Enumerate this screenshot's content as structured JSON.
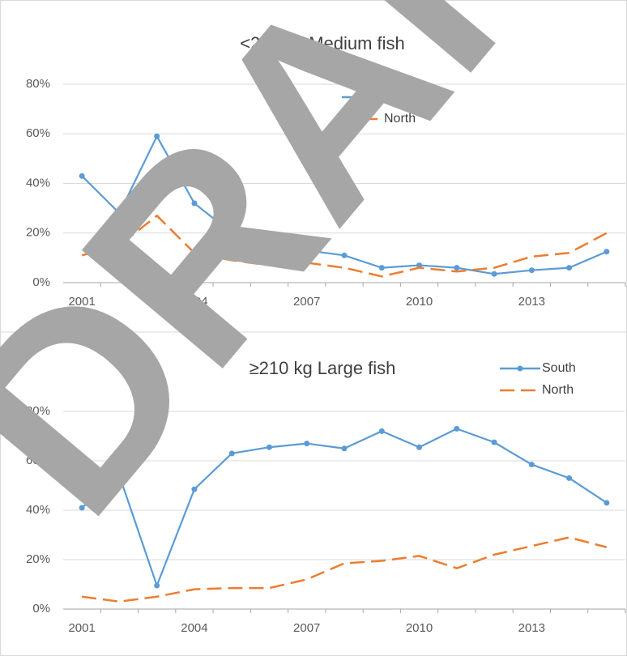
{
  "watermark": "DRAFT",
  "chart_data": [
    {
      "type": "line",
      "title": "<210 kg Medium fish",
      "categories": [
        2001,
        null,
        null,
        2004,
        null,
        null,
        2007,
        null,
        null,
        2010,
        null,
        null,
        2013,
        null,
        null
      ],
      "series": [
        {
          "name": "South",
          "color": "#5b9bd5",
          "values": [
            43,
            28,
            59,
            32,
            20,
            19,
            13,
            11,
            6,
            7,
            6,
            3.5,
            5,
            6,
            12.5
          ]
        },
        {
          "name": "North",
          "color": "#ed7d31",
          "values": [
            11,
            15,
            27,
            12,
            9,
            7,
            8,
            6,
            2.5,
            6,
            4.5,
            6,
            10.5,
            12,
            20
          ]
        }
      ],
      "ylim": [
        0,
        80
      ],
      "yticks": [
        {
          "value": 0,
          "label": "0%"
        },
        {
          "value": 20,
          "label": "20%"
        },
        {
          "value": 40,
          "label": "40%"
        },
        {
          "value": 60,
          "label": "60%"
        },
        {
          "value": 80,
          "label": "80%"
        }
      ],
      "grid": true,
      "legend": "upper right"
    },
    {
      "type": "line",
      "title": "≥210 kg Large fish",
      "categories": [
        2001,
        null,
        null,
        2004,
        null,
        null,
        2007,
        null,
        null,
        2010,
        null,
        null,
        2013,
        null,
        null
      ],
      "series": [
        {
          "name": "South",
          "color": "#5b9bd5",
          "values": [
            41,
            54,
            9.5,
            48.5,
            63,
            65.5,
            67,
            65,
            72,
            65.5,
            73,
            67.5,
            58.5,
            53,
            43
          ]
        },
        {
          "name": "North",
          "color": "#ed7d31",
          "values": [
            5,
            3,
            5,
            8,
            8.5,
            8.5,
            12,
            18.5,
            19.5,
            21.5,
            16.5,
            22,
            25.5,
            29,
            25
          ]
        }
      ],
      "ylim": [
        0,
        80
      ],
      "yticks": [
        {
          "value": 0,
          "label": "0%"
        },
        {
          "value": 20,
          "label": "20%"
        },
        {
          "value": 40,
          "label": "40%"
        },
        {
          "value": 60,
          "label": "60%"
        },
        {
          "value": 80,
          "label": "80%"
        }
      ],
      "grid": true,
      "legend": "upper right"
    }
  ]
}
